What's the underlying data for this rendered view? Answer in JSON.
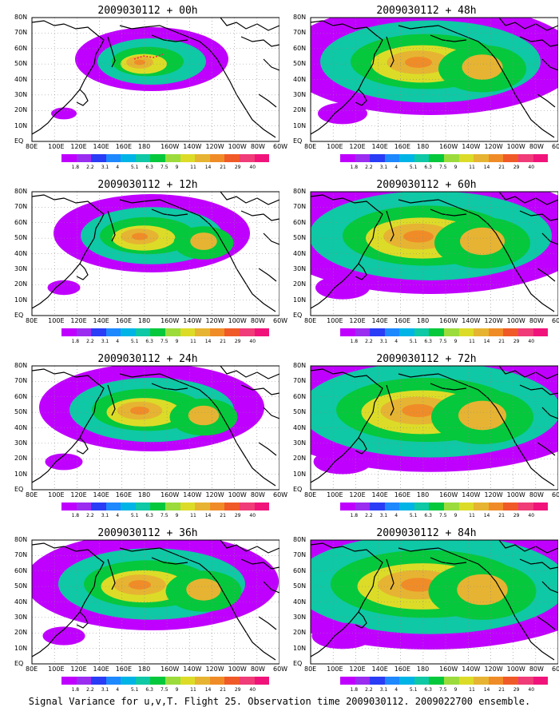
{
  "caption": "Signal Variance for u,v,T. Flight 25. Observation time 2009030112. 2009022700 ensemble.",
  "lat_labels": [
    "80N",
    "70N",
    "60N",
    "50N",
    "40N",
    "30N",
    "20N",
    "10N",
    "EQ"
  ],
  "lon_labels": [
    "80E",
    "100E",
    "120E",
    "140E",
    "160E",
    "180",
    "160W",
    "140W",
    "120W",
    "100W",
    "80W",
    "60W"
  ],
  "colorbar": {
    "labels": [
      "1.8",
      "2.2",
      "3.1",
      "4",
      "5.1",
      "6.3",
      "7.5",
      "9",
      "11",
      "14",
      "21",
      "29",
      "40"
    ],
    "colors": [
      "#c000ff",
      "#9a2df0",
      "#2a3cf5",
      "#1e88ff",
      "#00b4e6",
      "#0fc8a5",
      "#05c83c",
      "#9bdc3c",
      "#dcdc28",
      "#e6b432",
      "#f08c28",
      "#f05a28",
      "#f03c78",
      "#f0147a"
    ]
  },
  "panels": [
    {
      "title": "2009030112 + 00h",
      "intensity": 0.2,
      "track": true
    },
    {
      "title": "2009030112 + 48h",
      "intensity": 0.7
    },
    {
      "title": "2009030112 + 12h",
      "intensity": 0.35
    },
    {
      "title": "2009030112 + 60h",
      "intensity": 0.8
    },
    {
      "title": "2009030112 + 24h",
      "intensity": 0.45
    },
    {
      "title": "2009030112 + 72h",
      "intensity": 0.88
    },
    {
      "title": "2009030112 + 36h",
      "intensity": 0.55
    },
    {
      "title": "2009030112 + 84h",
      "intensity": 0.95
    }
  ]
}
